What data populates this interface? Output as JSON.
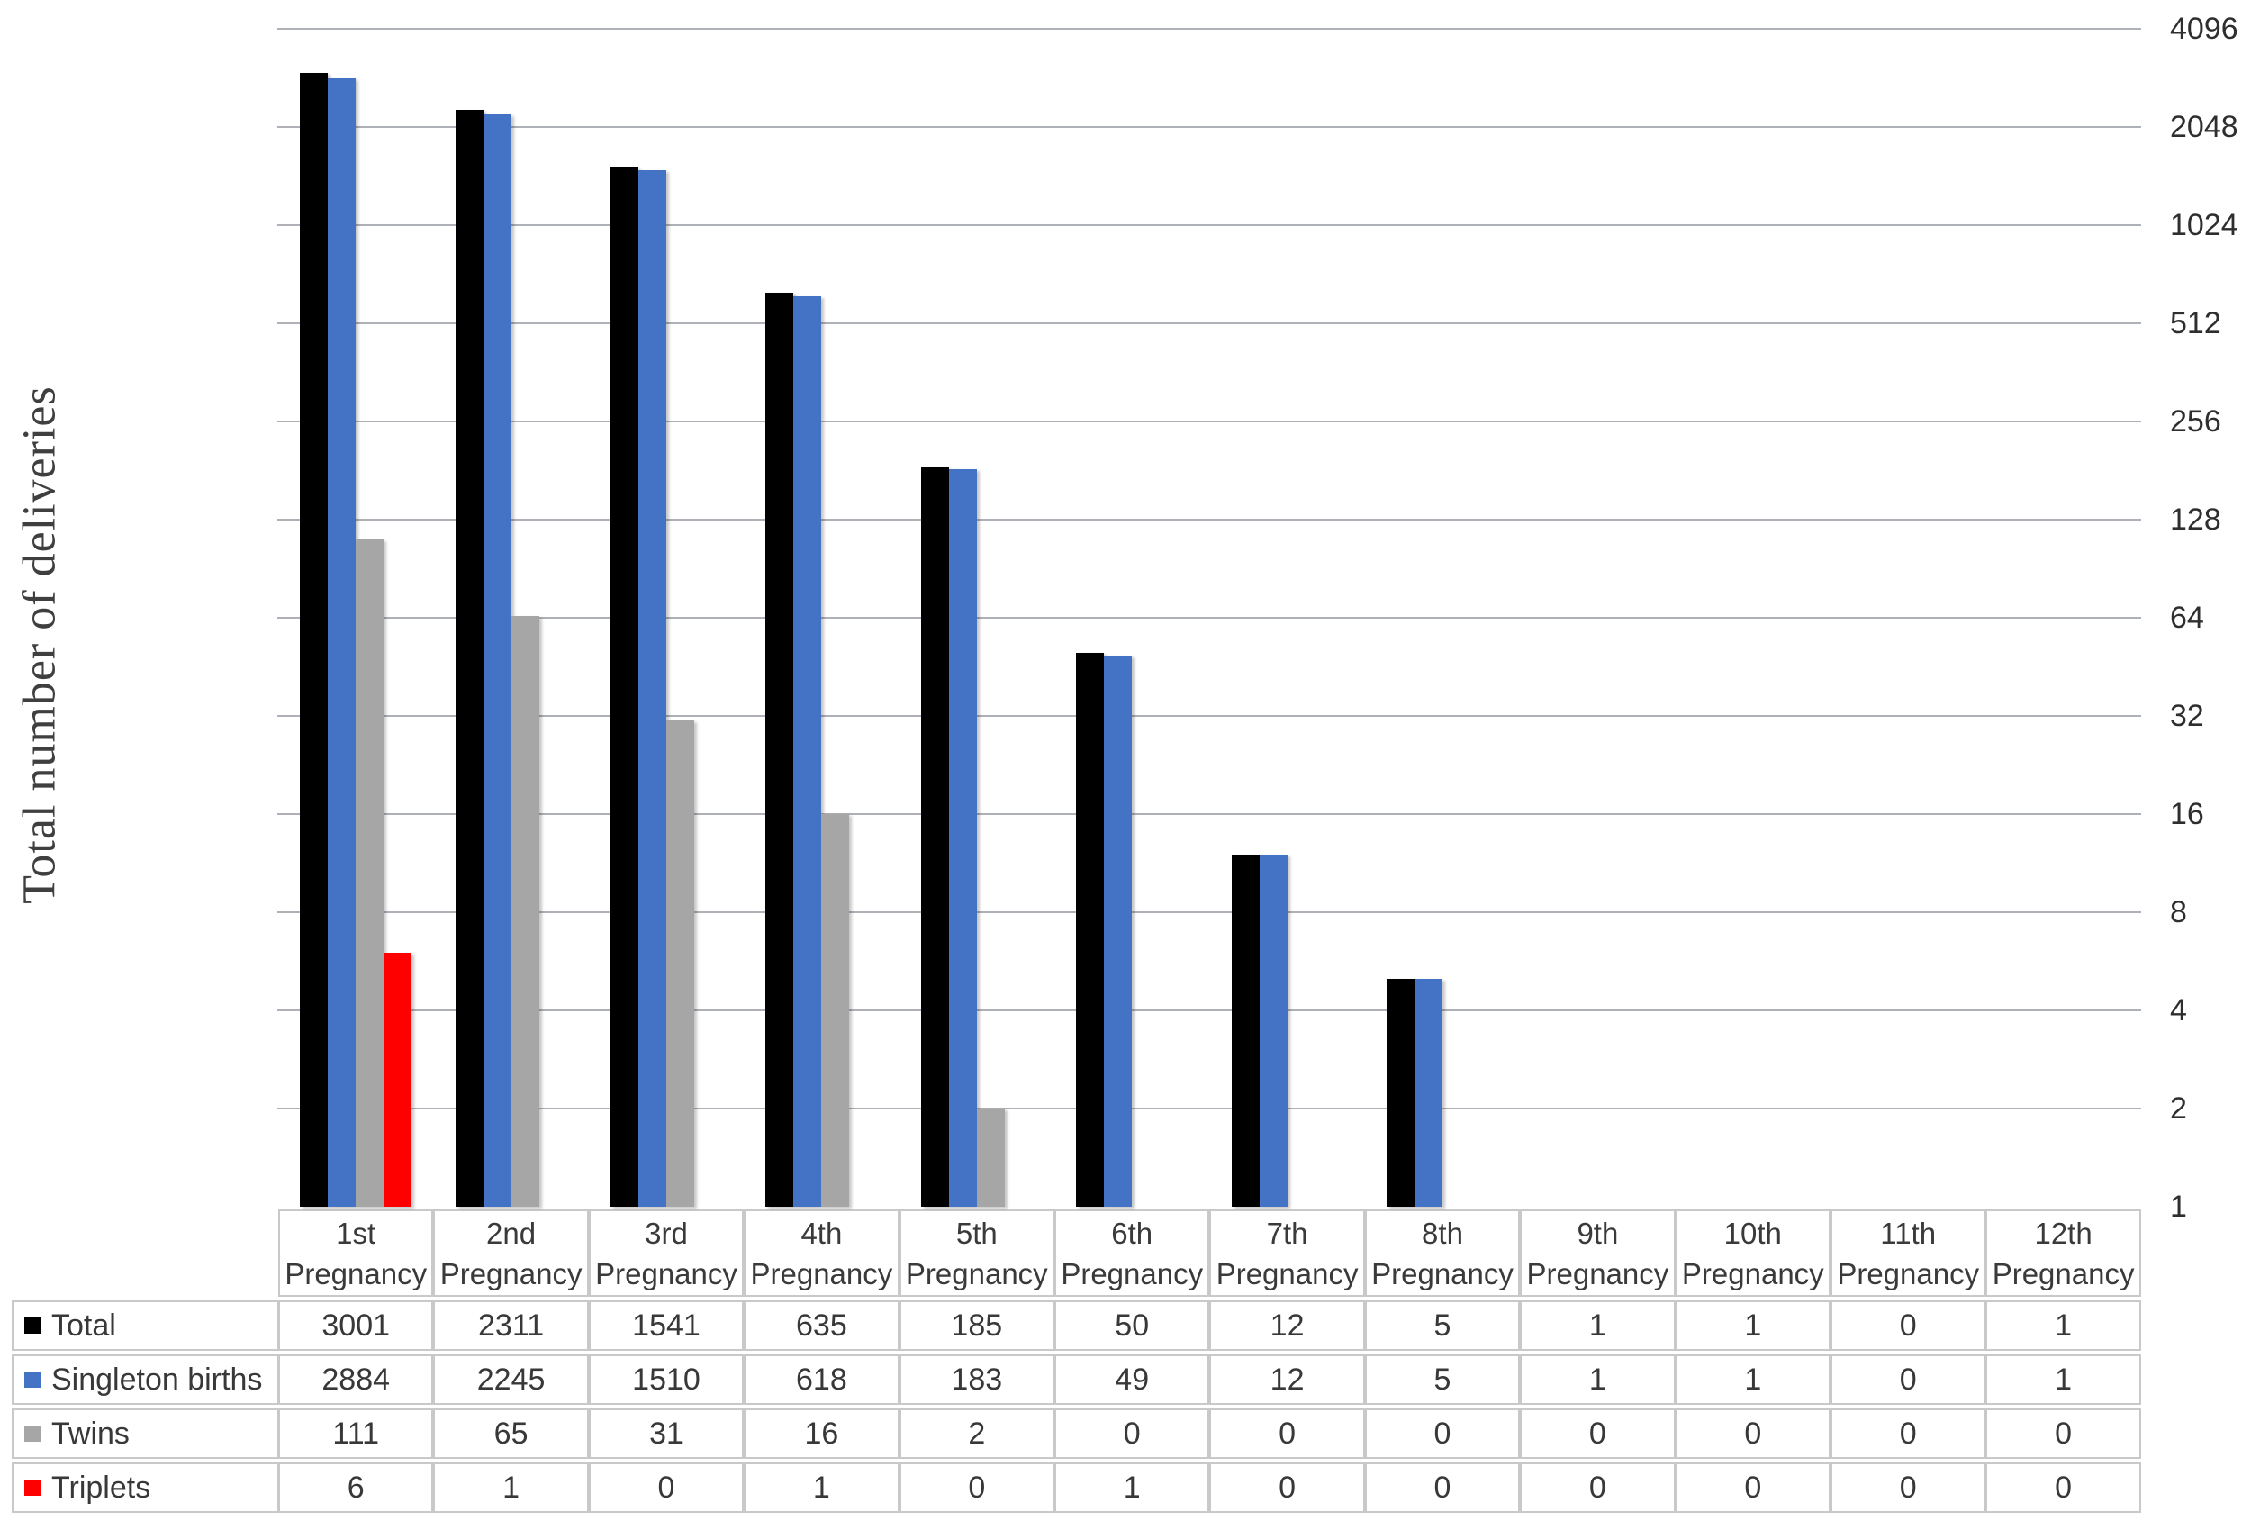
{
  "chart_data": {
    "type": "bar",
    "title": "",
    "xlabel": "",
    "ylabel": "Total number of deliveries",
    "y_scale": "log2",
    "ylim": [
      1,
      4096
    ],
    "y_ticks": [
      4096,
      2048,
      1024,
      512,
      256,
      128,
      64,
      32,
      16,
      8,
      4,
      2,
      1
    ],
    "grid": true,
    "legend_position": "table-rows-left",
    "categories": [
      "1st Pregnancy",
      "2nd Pregnancy",
      "3rd Pregnancy",
      "4th Pregnancy",
      "5th Pregnancy",
      "6th Pregnancy",
      "7th Pregnancy",
      "8th Pregnancy",
      "9th Pregnancy",
      "10th Pregnancy",
      "11th Pregnancy",
      "12th Pregnancy"
    ],
    "series": [
      {
        "name": "Total",
        "color": "#000000",
        "values": [
          3001,
          2311,
          1541,
          635,
          185,
          50,
          12,
          5,
          1,
          1,
          0,
          1
        ]
      },
      {
        "name": "Singleton births",
        "color": "#4472C4",
        "values": [
          2884,
          2245,
          1510,
          618,
          183,
          49,
          12,
          5,
          1,
          1,
          0,
          1
        ]
      },
      {
        "name": "Twins",
        "color": "#A6A6A6",
        "values": [
          111,
          65,
          31,
          16,
          2,
          0,
          0,
          0,
          0,
          0,
          0,
          0
        ]
      },
      {
        "name": "Triplets",
        "color": "#FF0000",
        "values": [
          6,
          1,
          0,
          1,
          0,
          1,
          0,
          0,
          0,
          0,
          0,
          0
        ]
      }
    ]
  }
}
